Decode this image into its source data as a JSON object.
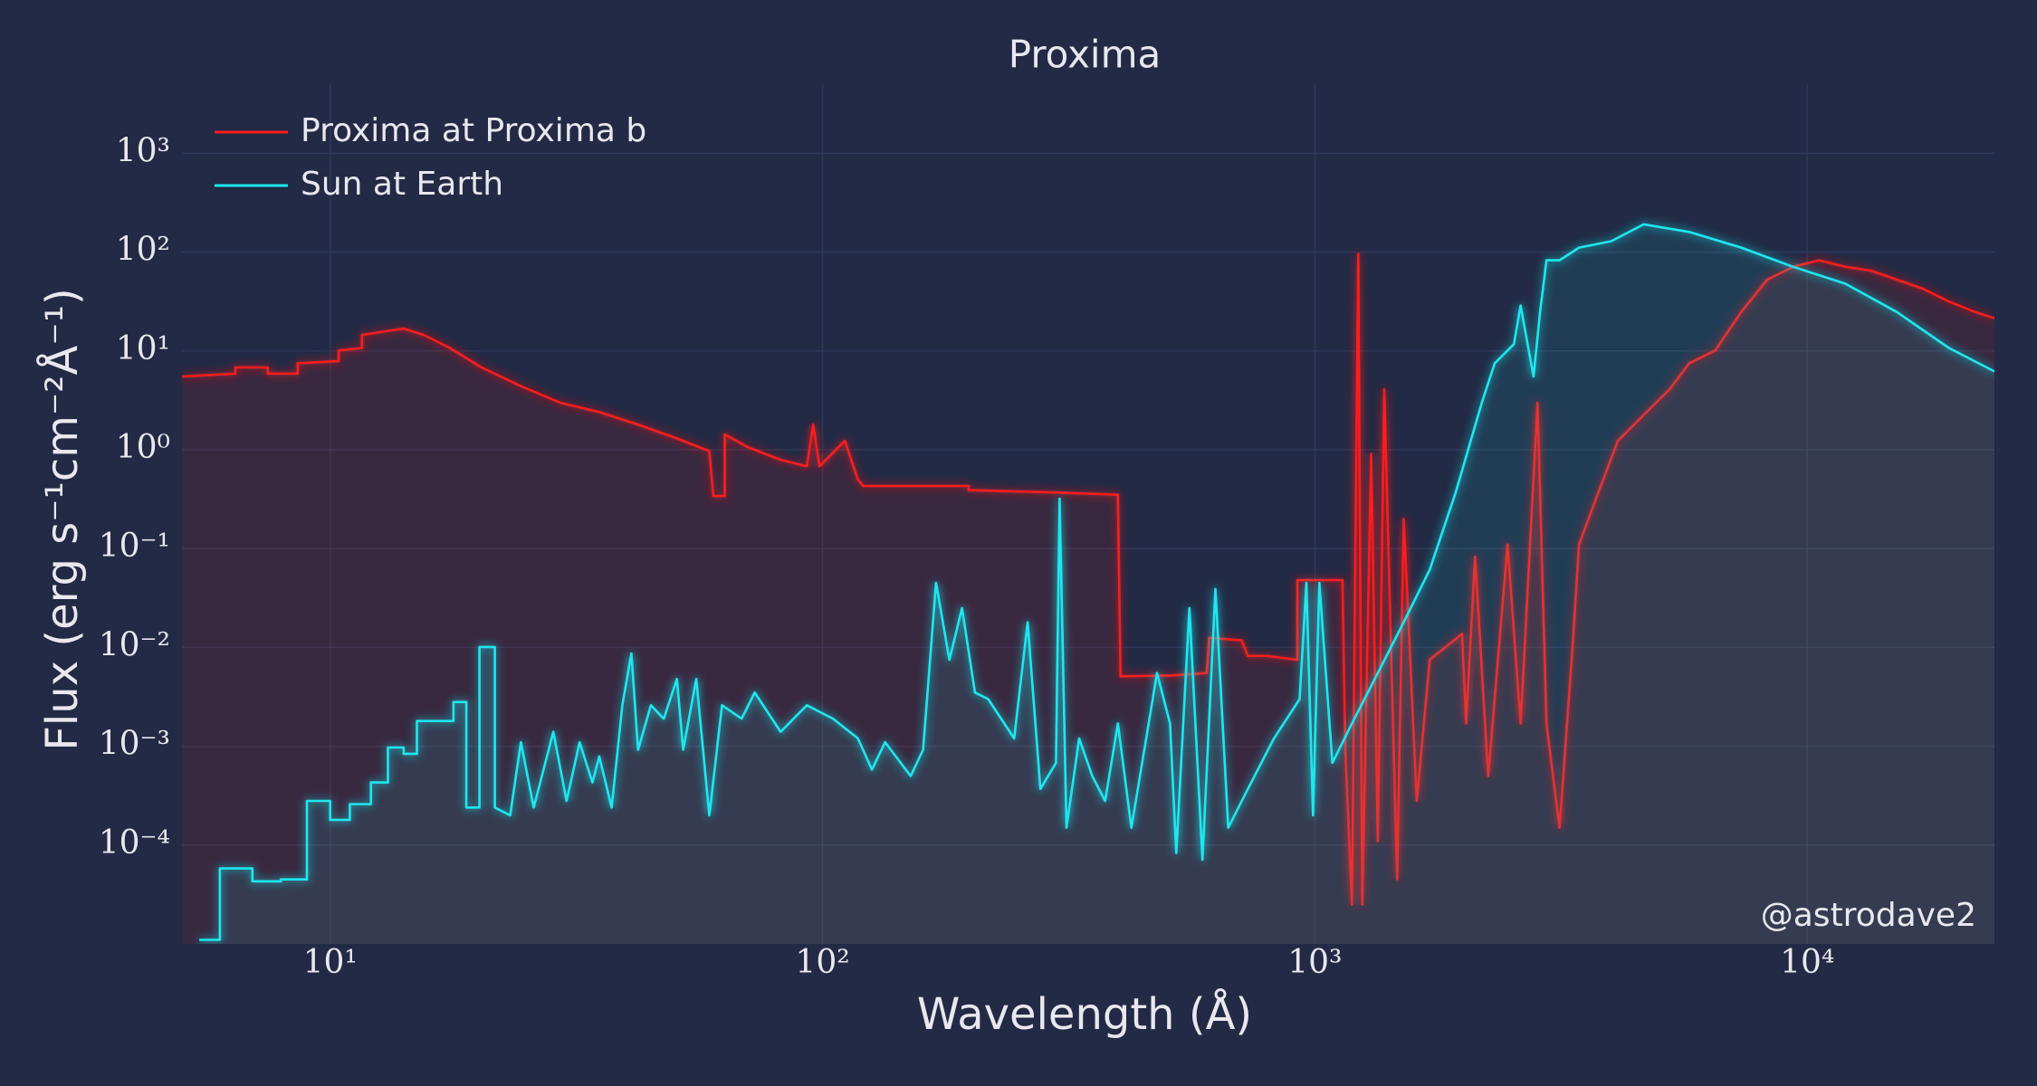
{
  "chart_data": {
    "type": "line",
    "title": "Proxima",
    "x_label": "Wavelength (Å)",
    "y_label": "Flux (erg s⁻¹cm⁻²Å⁻¹)",
    "annotation": "@astrodave2",
    "log_x": true,
    "log_y": true,
    "grid": true,
    "legend": "upper left",
    "xlim": [
      5,
      24000
    ],
    "ylim": [
      1e-05,
      5000
    ],
    "xticks": [
      {
        "value": 10,
        "label": "10¹"
      },
      {
        "value": 100,
        "label": "10²"
      },
      {
        "value": 1000,
        "label": "10³"
      },
      {
        "value": 10000,
        "label": "10⁴"
      }
    ],
    "yticks": [
      {
        "value": 0.0001,
        "label": "10⁻⁴"
      },
      {
        "value": 0.001,
        "label": "10⁻³"
      },
      {
        "value": 0.01,
        "label": "10⁻²"
      },
      {
        "value": 0.1,
        "label": "10⁻¹"
      },
      {
        "value": 1,
        "label": "10⁰"
      },
      {
        "value": 10,
        "label": "10¹"
      },
      {
        "value": 100,
        "label": "10²"
      },
      {
        "value": 1000,
        "label": "10³"
      }
    ],
    "series": [
      {
        "name": "Proxima at Proxima b",
        "color": "#ff1a1a",
        "x": [
          5,
          6.42,
          6.42,
          7.47,
          7.47,
          8.59,
          8.59,
          10.4,
          10.4,
          11.6,
          11.6,
          12.9,
          14.1,
          15.5,
          17.5,
          20.3,
          24.4,
          29.3,
          35.2,
          42.2,
          50.6,
          58.9,
          60,
          63.3,
          63.3,
          70.6,
          82.2,
          92.9,
          95.7,
          98.6,
          111,
          118,
          121,
          198,
          198,
          294,
          398,
          403,
          508,
          603,
          610,
          710,
          731,
          800,
          921,
          921,
          1138,
          1153,
          1189,
          1225,
          1248,
          1301,
          1342,
          1383,
          1469,
          1515,
          1610,
          1711,
          1991,
          2028,
          2115,
          2249,
          2462,
          2617,
          2833,
          2954,
          3140,
          3337,
          3438,
          3765,
          4124,
          4653,
          5255,
          5757,
          6501,
          7344,
          8294,
          9360,
          10570,
          11940,
          13460,
          15200,
          17170,
          19400,
          21900,
          24000
        ],
        "values": [
          5.5,
          5.9,
          6.8,
          6.8,
          5.9,
          5.9,
          7.5,
          7.9,
          10.1,
          10.7,
          14.5,
          15.8,
          16.8,
          14.5,
          10.7,
          6.8,
          4.4,
          3.0,
          2.4,
          1.8,
          1.3,
          0.97,
          0.34,
          0.34,
          1.43,
          1.06,
          0.79,
          0.68,
          1.8,
          0.68,
          1.23,
          0.5,
          0.43,
          0.43,
          0.39,
          0.37,
          0.35,
          0.0051,
          0.0052,
          0.0055,
          0.0125,
          0.0118,
          0.0082,
          0.0082,
          0.0075,
          0.048,
          0.048,
          0.00092,
          2.5e-05,
          96,
          2.5e-05,
          0.91,
          0.00011,
          4.1,
          4.5e-05,
          0.2,
          0.00028,
          0.0075,
          0.0137,
          0.0017,
          0.083,
          0.0005,
          0.11,
          0.0017,
          3.0,
          0.0017,
          0.00015,
          0.0101,
          0.11,
          0.37,
          1.23,
          2.25,
          4.1,
          7.5,
          10.1,
          24.8,
          52.6,
          71,
          82.6,
          71,
          64.9,
          52.6,
          42.6,
          31.6,
          24.8,
          21.4
        ]
      },
      {
        "name": "Sun at Earth",
        "color": "#1ee8f0",
        "x": [
          5.42,
          5.97,
          5.97,
          6.95,
          6.95,
          7.94,
          7.94,
          8.97,
          8.97,
          10,
          10,
          10.96,
          10.96,
          12.1,
          12.1,
          13.1,
          13.1,
          14.1,
          14.1,
          15,
          15,
          17.8,
          17.8,
          18.9,
          18.9,
          20.1,
          20.1,
          21.6,
          21.6,
          23.2,
          24.4,
          25.9,
          28.4,
          30.2,
          32.1,
          34.1,
          35.2,
          37.3,
          39.2,
          40.9,
          42.2,
          44.8,
          47.6,
          50.6,
          52.1,
          55.4,
          58.9,
          62.5,
          68.5,
          72.8,
          82.2,
          92.9,
          105,
          118,
          126,
          134,
          151,
          160,
          170,
          181,
          192,
          204,
          217,
          245,
          261,
          277,
          298,
          303,
          313,
          332,
          353,
          375,
          398,
          424,
          478,
          508,
          523,
          556,
          591,
          628,
          667,
          731,
          826,
          931,
          961,
          991,
          1021,
          1085,
          1189,
          1342,
          1515,
          1711,
          1932,
          2183,
          2318,
          2536,
          2617,
          2780,
          2866,
          2954,
          3140,
          3438,
          4000,
          4653,
          5757,
          7344,
          9360,
          11940,
          15200,
          19400,
          24000
        ],
        "values": [
          1.1e-05,
          1.1e-05,
          5.8e-05,
          5.8e-05,
          4.3e-05,
          4.3e-05,
          4.5e-05,
          4.5e-05,
          0.00028,
          0.00028,
          0.00018,
          0.00018,
          0.00026,
          0.00026,
          0.00043,
          0.00043,
          0.00097,
          0.00097,
          0.00084,
          0.00084,
          0.0018,
          0.0018,
          0.0028,
          0.0028,
          0.00024,
          0.00024,
          0.0101,
          0.0101,
          0.00024,
          0.0002,
          0.0011,
          0.00024,
          0.0014,
          0.00028,
          0.0011,
          0.00043,
          0.00079,
          0.00024,
          0.0026,
          0.0087,
          0.00092,
          0.0026,
          0.0019,
          0.0048,
          0.00092,
          0.0048,
          0.0002,
          0.0026,
          0.0019,
          0.0035,
          0.0014,
          0.0026,
          0.0019,
          0.0012,
          0.00058,
          0.0011,
          0.0005,
          0.00092,
          0.045,
          0.0075,
          0.025,
          0.0035,
          0.003,
          0.0012,
          0.018,
          0.00037,
          0.00068,
          0.32,
          0.00015,
          0.0012,
          0.0005,
          0.00028,
          0.0017,
          0.00015,
          0.0055,
          0.0017,
          8.3e-05,
          0.025,
          7.1e-05,
          0.039,
          0.00015,
          0.00037,
          0.0012,
          0.003,
          0.045,
          0.0002,
          0.045,
          0.00068,
          0.0017,
          0.0055,
          0.018,
          0.061,
          0.37,
          3.0,
          7.5,
          11.7,
          28.8,
          5.5,
          24.8,
          82.6,
          82.6,
          111,
          129,
          191,
          160,
          111,
          71,
          48,
          24.8,
          10.7,
          6.2
        ]
      }
    ]
  }
}
